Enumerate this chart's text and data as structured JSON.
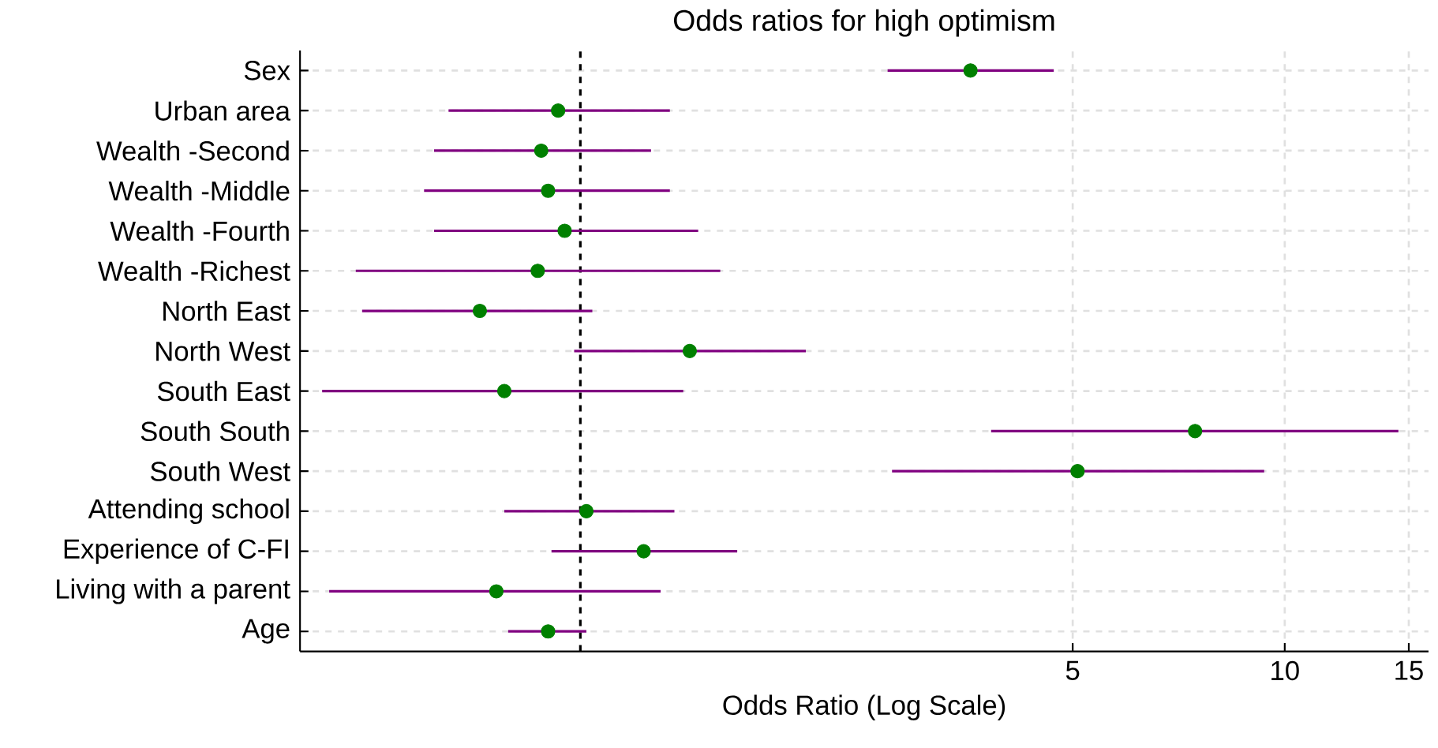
{
  "chart_data": {
    "type": "scatter",
    "orientation": "horizontal",
    "title": "Odds ratios for high optimism",
    "xlabel": "Odds Ratio (Log Scale)",
    "categories": [
      "Sex",
      "Urban area",
      "Wealth -Second",
      "Wealth -Middle",
      "Wealth -Fourth",
      "Wealth -Richest",
      "North East",
      "North West",
      "South East",
      "South South",
      "South West",
      "Attending school",
      "Experience of C-FI",
      "Living with a parent",
      "Age"
    ],
    "values": [
      3.58,
      0.93,
      0.88,
      0.9,
      0.95,
      0.87,
      0.72,
      1.43,
      0.78,
      7.46,
      5.08,
      1.02,
      1.23,
      0.76,
      0.9
    ],
    "errors": [
      [
        2.73,
        4.7
      ],
      [
        0.65,
        1.34
      ],
      [
        0.62,
        1.26
      ],
      [
        0.6,
        1.34
      ],
      [
        0.62,
        1.47
      ],
      [
        0.48,
        1.58
      ],
      [
        0.49,
        1.04
      ],
      [
        0.98,
        2.09
      ],
      [
        0.43,
        1.4
      ],
      [
        3.83,
        14.5
      ],
      [
        2.77,
        9.35
      ],
      [
        0.78,
        1.36
      ],
      [
        0.91,
        1.67
      ],
      [
        0.44,
        1.3
      ],
      [
        0.79,
        1.02
      ]
    ],
    "color": "#008000",
    "xlim": [
      0.4,
      16
    ],
    "xticks": [
      5,
      10,
      15
    ],
    "log": "x",
    "grid": true,
    "ref_lines": [
      {
        "axis": "x",
        "value": 1,
        "color": "#000000",
        "line_style": "dashed"
      }
    ]
  }
}
